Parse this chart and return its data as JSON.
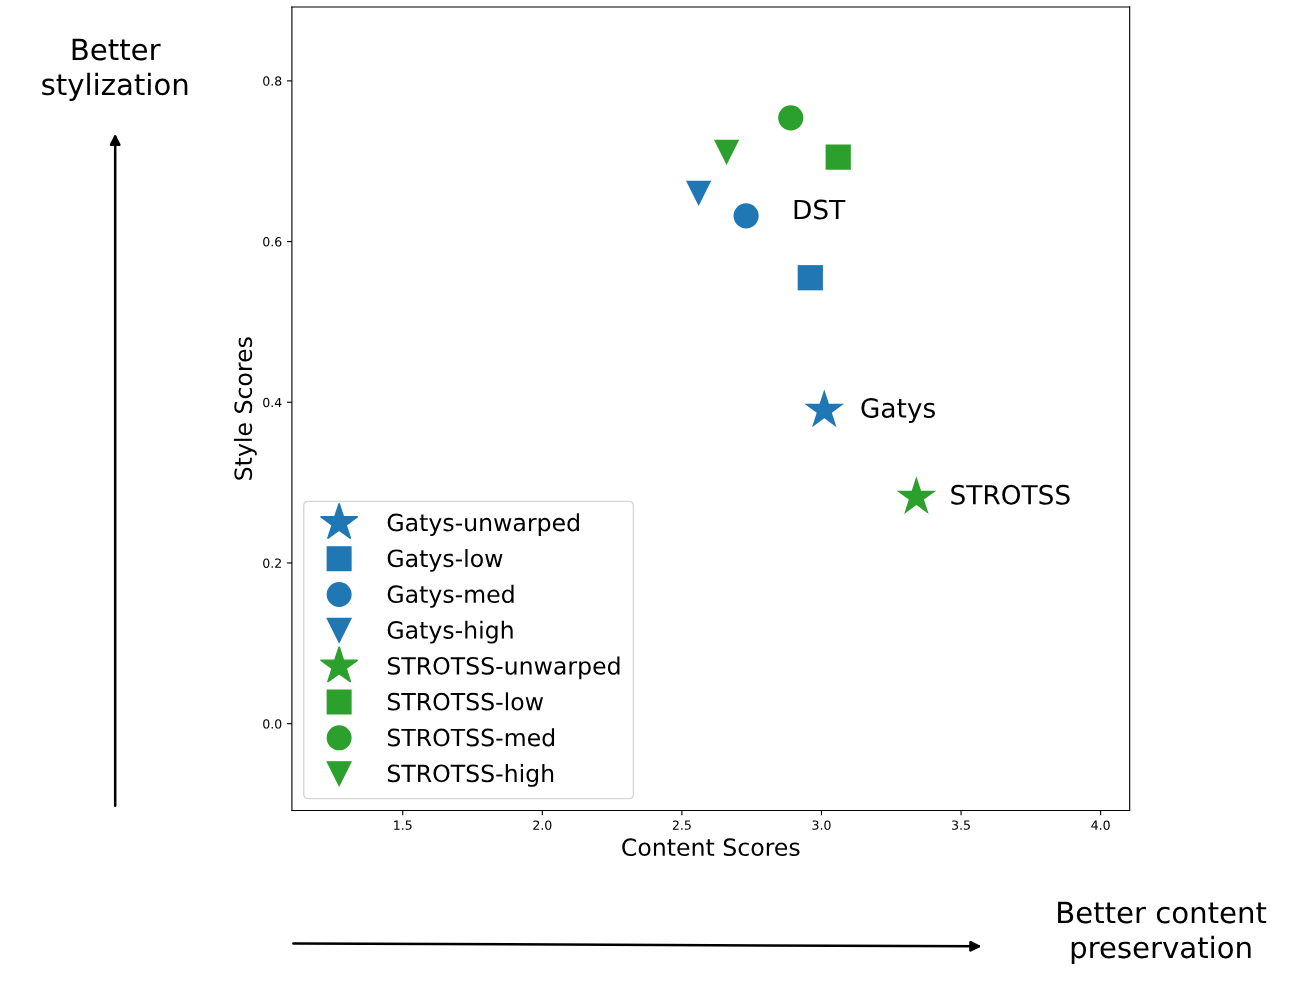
{
  "chart_data": {
    "type": "scatter",
    "xlabel": "Content Scores",
    "ylabel": "Style Scores",
    "xlim": [
      1.103,
      4.104
    ],
    "ylim": [
      -0.108,
      0.892
    ],
    "xticks": [
      1.5,
      {
        "value": 2,
        "label": "2.0"
      },
      2.5,
      {
        "value": 3,
        "label": "3.0"
      },
      3.5,
      {
        "value": 4,
        "label": "4.0"
      }
    ],
    "yticks": [
      {
        "value": 0,
        "label": "0.0"
      },
      0.2,
      0.4,
      0.6,
      0.8
    ],
    "grid": false,
    "legend": "bottom left",
    "series": [
      {
        "name": "Gatys-unwarped",
        "color": "#1f77b4",
        "marker": "star",
        "x": [
          3.01
        ],
        "values": [
          0.39
        ]
      },
      {
        "name": "Gatys-low",
        "color": "#1f77b4",
        "marker": "square",
        "x": [
          2.96
        ],
        "values": [
          0.555
        ]
      },
      {
        "name": "Gatys-med",
        "color": "#1f77b4",
        "marker": "circle",
        "x": [
          2.73
        ],
        "values": [
          0.632
        ]
      },
      {
        "name": "Gatys-high",
        "color": "#1f77b4",
        "marker": "triangle",
        "x": [
          2.56
        ],
        "values": [
          0.66
        ]
      },
      {
        "name": "STROTSS-unwarped",
        "color": "#2ca02c",
        "marker": "star",
        "x": [
          3.34
        ],
        "values": [
          0.282
        ]
      },
      {
        "name": "STROTSS-low",
        "color": "#2ca02c",
        "marker": "square",
        "x": [
          3.06
        ],
        "values": [
          0.705
        ]
      },
      {
        "name": "STROTSS-med",
        "color": "#2ca02c",
        "marker": "circle",
        "x": [
          2.89
        ],
        "values": [
          0.754
        ]
      },
      {
        "name": "STROTSS-high",
        "color": "#2ca02c",
        "marker": "triangle",
        "x": [
          2.66
        ],
        "values": [
          0.711
        ]
      }
    ],
    "annotations": [
      "DST",
      "Gatys",
      "STROTSS",
      "Better\nstylization",
      "Better content\npreservation"
    ]
  }
}
